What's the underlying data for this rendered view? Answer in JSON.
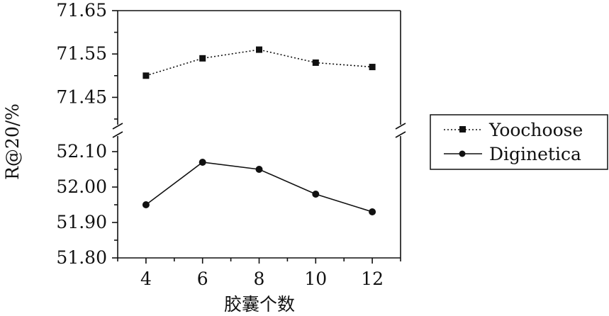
{
  "chart_data": {
    "type": "line",
    "xlabel": "胶囊个数",
    "ylabel": "R@20/%",
    "x": [
      4,
      6,
      8,
      10,
      12
    ],
    "x_ticks": [
      "4",
      "6",
      "8",
      "10",
      "12"
    ],
    "axis_break": true,
    "upper_panel": {
      "ylim": [
        71.4,
        71.65
      ],
      "y_ticks": [
        "71.65",
        "71.55",
        "71.45"
      ],
      "y_tick_values": [
        71.65,
        71.55,
        71.45
      ]
    },
    "lower_panel": {
      "ylim": [
        51.8,
        52.15
      ],
      "y_ticks": [
        "52.10",
        "52.00",
        "51.90",
        "51.80"
      ],
      "y_tick_values": [
        52.1,
        52.0,
        51.9,
        51.8
      ]
    },
    "series": [
      {
        "name": "Yoochoose",
        "panel": "upper",
        "line": "dotted",
        "marker": "square",
        "values": [
          71.5,
          71.54,
          71.56,
          71.53,
          71.52
        ]
      },
      {
        "name": "Diginetica",
        "panel": "lower",
        "line": "solid",
        "marker": "circle",
        "values": [
          51.95,
          52.07,
          52.05,
          51.98,
          51.93
        ]
      }
    ],
    "legend": {
      "position": "right"
    },
    "grid": false,
    "colors": {
      "line": "#000000"
    }
  }
}
